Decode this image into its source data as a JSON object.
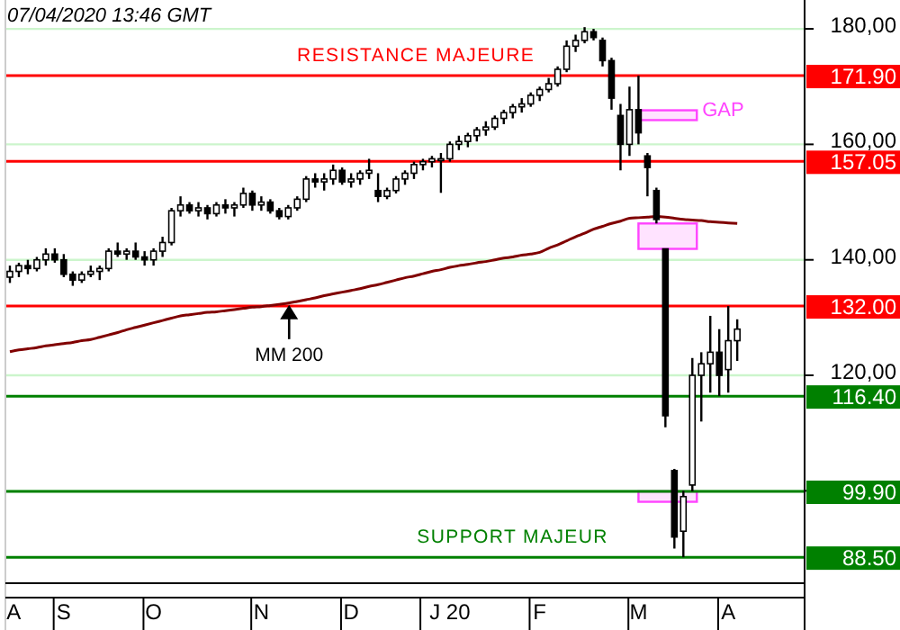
{
  "chart_data": {
    "type": "candlestick",
    "title": "07/04/2020  13:46 GMT",
    "categories": [
      "A",
      null,
      null,
      null,
      null,
      null,
      "S",
      null,
      null,
      null,
      null,
      null,
      null,
      null,
      null,
      null,
      "O",
      null,
      null,
      null,
      null,
      null,
      null,
      null,
      null,
      null,
      null,
      null,
      "N",
      null,
      null,
      null,
      null,
      null,
      null,
      null,
      null,
      null,
      "D",
      null,
      null,
      null,
      null,
      null,
      null,
      null,
      null,
      null,
      null,
      "J 20",
      null,
      null,
      null,
      null,
      null,
      null,
      null,
      null,
      null,
      "F",
      null,
      null,
      null,
      null,
      null,
      null,
      null,
      null,
      null,
      null,
      "M",
      null,
      null,
      null,
      null,
      null,
      null,
      null,
      null,
      null,
      "A",
      null,
      null,
      null,
      null,
      null,
      null,
      null,
      null
    ],
    "ohlc": [
      [
        137,
        139,
        136,
        138
      ],
      [
        138,
        139.5,
        137,
        139
      ],
      [
        139,
        140,
        137.5,
        138.5
      ],
      [
        138.5,
        140.5,
        138,
        140
      ],
      [
        140,
        142,
        139,
        141
      ],
      [
        141,
        142,
        139.5,
        140
      ],
      [
        140,
        141,
        137,
        137.5
      ],
      [
        137.5,
        138,
        135.5,
        136.5
      ],
      [
        136.5,
        138,
        136,
        137.5
      ],
      [
        137.5,
        139,
        137,
        138
      ],
      [
        138,
        139,
        136.5,
        138.5
      ],
      [
        138.5,
        142,
        138,
        141.5
      ],
      [
        141.5,
        143,
        140.5,
        141
      ],
      [
        141,
        142,
        140,
        141.5
      ],
      [
        141.5,
        143,
        140,
        140.5
      ],
      [
        140.5,
        141.5,
        139,
        140
      ],
      [
        140,
        142,
        139,
        141.5
      ],
      [
        141.5,
        144,
        140.5,
        143
      ],
      [
        143,
        149,
        142.5,
        148.5
      ],
      [
        148.5,
        151,
        147.5,
        149.5
      ],
      [
        149.5,
        150,
        148,
        148.5
      ],
      [
        148.5,
        150,
        147.5,
        149
      ],
      [
        149,
        149.5,
        147,
        148
      ],
      [
        148,
        150,
        147.5,
        149.5
      ],
      [
        149.5,
        150.5,
        148,
        149
      ],
      [
        149,
        150,
        147.5,
        149.5
      ],
      [
        149.5,
        152.5,
        149,
        151.5
      ],
      [
        151.5,
        152,
        148.5,
        149.5
      ],
      [
        149.5,
        151,
        148.5,
        150
      ],
      [
        150,
        150.5,
        148,
        148.5
      ],
      [
        148.5,
        149,
        147,
        147.5
      ],
      [
        147.5,
        149.5,
        147,
        149
      ],
      [
        149,
        151,
        148.5,
        150.5
      ],
      [
        150.5,
        154.5,
        150,
        154
      ],
      [
        154,
        155,
        152.5,
        153.5
      ],
      [
        153.5,
        155,
        152,
        154
      ],
      [
        154,
        156.5,
        153,
        155.5
      ],
      [
        155.5,
        156,
        153,
        153.5
      ],
      [
        153.5,
        155,
        152.5,
        154
      ],
      [
        154,
        155.5,
        153,
        155
      ],
      [
        155,
        157.5,
        154,
        155.5
      ],
      [
        152,
        155,
        150,
        151
      ],
      [
        151,
        152.5,
        150.5,
        152
      ],
      [
        152,
        154.5,
        151.5,
        154
      ],
      [
        154,
        155.5,
        153,
        155
      ],
      [
        155,
        157,
        154,
        156.5
      ],
      [
        156.5,
        157.5,
        155.5,
        157
      ],
      [
        157,
        158,
        156,
        157.5
      ],
      [
        157.5,
        158.5,
        151.6,
        157.5
      ],
      [
        157.5,
        160.5,
        157,
        160
      ],
      [
        160,
        161.5,
        159,
        160.5
      ],
      [
        160.5,
        162,
        159.5,
        161.5
      ],
      [
        161.5,
        163,
        160.5,
        162.5
      ],
      [
        162.5,
        164,
        161.5,
        163
      ],
      [
        163,
        165,
        162.5,
        164.5
      ],
      [
        164.5,
        166,
        163.5,
        165.5
      ],
      [
        165.5,
        167,
        164.5,
        166.5
      ],
      [
        166.5,
        168,
        165.5,
        167
      ],
      [
        167,
        169,
        166.5,
        168.5
      ],
      [
        168.5,
        170,
        167.5,
        169.5
      ],
      [
        169.5,
        171.5,
        169,
        170.5
      ],
      [
        170.5,
        173.5,
        170,
        173
      ],
      [
        173,
        178,
        172.5,
        177
      ],
      [
        177,
        179,
        176,
        178
      ],
      [
        178,
        180.3,
        177.5,
        179.5
      ],
      [
        179.5,
        180,
        178,
        178.5
      ],
      [
        178,
        178.5,
        173.5,
        174.5
      ],
      [
        174.5,
        175,
        166,
        168
      ],
      [
        165,
        167,
        155.5,
        160
      ],
      [
        160,
        170,
        158,
        166
      ],
      [
        166,
        171.9,
        160,
        162
      ],
      [
        158,
        158.5,
        151,
        156
      ],
      [
        152,
        152.5,
        146.3,
        147
      ],
      [
        141.9,
        141.9,
        111,
        113
      ],
      [
        103.5,
        103.8,
        90,
        92
      ],
      [
        93,
        100,
        88.5,
        99
      ],
      [
        101,
        123,
        99.9,
        120
      ],
      [
        120,
        124,
        112,
        122
      ],
      [
        122,
        130.3,
        117,
        124
      ],
      [
        124,
        128,
        116.4,
        120
      ],
      [
        121,
        132,
        117,
        126
      ],
      [
        126,
        129.7,
        122.5,
        128
      ],
      null,
      null,
      null,
      null,
      null,
      null,
      null
    ],
    "series": [
      {
        "type": "line",
        "color": "#800000",
        "values": [
          124.1,
          124.4,
          124.6,
          124.8,
          125.1,
          125.3,
          125.5,
          125.7,
          126.0,
          126.2,
          126.6,
          127.0,
          127.4,
          127.9,
          128.3,
          128.7,
          129.1,
          129.5,
          129.9,
          130.3,
          130.5,
          130.7,
          130.9,
          131.0,
          131.2,
          131.4,
          131.6,
          131.8,
          131.9,
          132.1,
          132.3,
          132.5,
          132.8,
          133.1,
          133.4,
          133.8,
          134.1,
          134.4,
          134.7,
          135.0,
          135.4,
          135.7,
          136.1,
          136.5,
          136.9,
          137.2,
          137.6,
          138.0,
          138.3,
          138.7,
          139.0,
          139.2,
          139.5,
          139.7,
          140.0,
          140.3,
          140.5,
          140.8,
          141.0,
          141.3,
          142.0,
          142.6,
          143.3,
          144.0,
          144.6,
          145.3,
          145.8,
          146.3,
          146.7,
          147.2,
          147.3,
          147.4,
          147.5,
          147.4,
          147.2,
          147.0,
          146.9,
          146.8,
          146.6,
          146.5,
          146.4,
          146.3,
          null,
          null,
          null,
          null,
          null,
          null,
          null
        ]
      }
    ],
    "ylim": [
      84,
      185
    ],
    "yticks": [
      {
        "value": 100,
        "label": null
      },
      {
        "value": 120,
        "label": "120,00"
      },
      {
        "value": 140,
        "label": "140,00"
      },
      {
        "value": 160,
        "label": "160,00"
      },
      {
        "value": 180,
        "label": "180,00"
      }
    ],
    "grid": "y",
    "ref_lines": [
      {
        "axis": "y",
        "value": 171.9,
        "label": "171.90",
        "color": "#ff0000"
      },
      {
        "axis": "y",
        "value": 157.05,
        "label": "157.05",
        "color": "#ff0000"
      },
      {
        "axis": "y",
        "value": 132,
        "label": "132.00",
        "color": "#ff0000"
      },
      {
        "axis": "y",
        "value": 116.4,
        "label": "116.40",
        "color": "#008000"
      },
      {
        "axis": "y",
        "value": 99.9,
        "label": "99.90",
        "color": "#008000"
      },
      {
        "axis": "y",
        "value": 88.5,
        "label": "88.50",
        "color": "#008000"
      }
    ],
    "bands": [
      {
        "axis": "y",
        "from": 164.2,
        "to": 165.9,
        "label": "GAP",
        "color": "#ff44ff"
      },
      {
        "axis": "y",
        "from": 141.9,
        "to": 146.3,
        "label": null,
        "color": "#ff44ff"
      },
      {
        "axis": "y",
        "from": 98.1,
        "to": 99.9,
        "label": null,
        "color": "#ff44ff"
      }
    ],
    "annotations": [
      {
        "text": "RESISTANCE MAJEURE",
        "y": 171.9
      },
      {
        "text": "SUPPORT MAJEUR",
        "y": 88.5
      },
      {
        "text": "MM 200",
        "y": 132.5
      }
    ]
  }
}
